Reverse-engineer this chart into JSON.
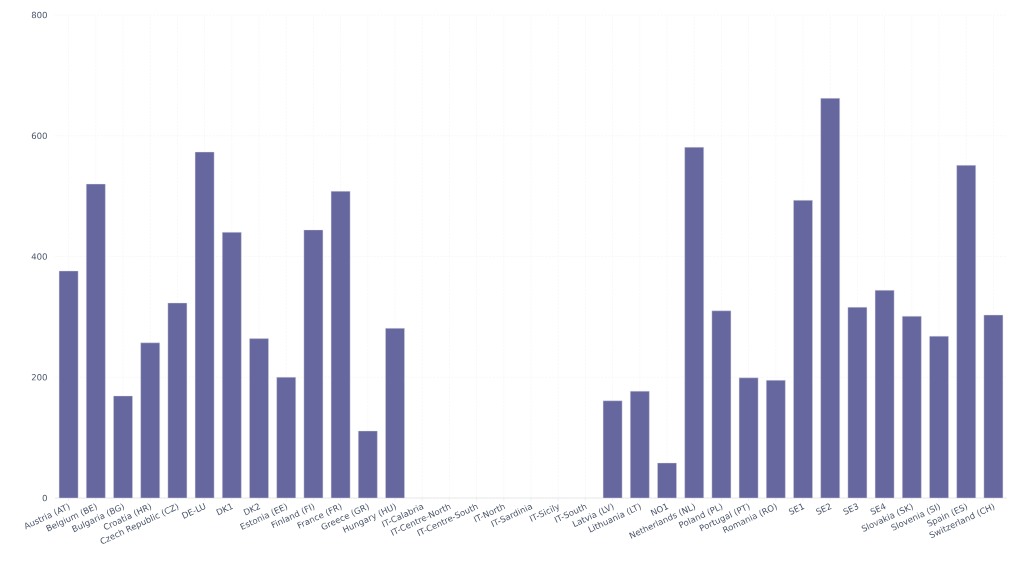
{
  "chart_data": {
    "type": "bar",
    "categories": [
      "Austria (AT)",
      "Belgium (BE)",
      "Bulgaria (BG)",
      "Croatia (HR)",
      "Czech Republic (CZ)",
      "DE-LU",
      "DK1",
      "DK2",
      "Estonia (EE)",
      "Finland (FI)",
      "France (FR)",
      "Greece (GR)",
      "Hungary (HU)",
      "IT-Calabria",
      "IT-Centre-North",
      "IT-Centre-South",
      "IT-North",
      "IT-Sardinia",
      "IT-Sicily",
      "IT-South",
      "Latvia (LV)",
      "Lithuania (LT)",
      "NO1",
      "Netherlands (NL)",
      "Poland (PL)",
      "Portugal (PT)",
      "Romania (RO)",
      "SE1",
      "SE2",
      "SE3",
      "SE4",
      "Slovakia (SK)",
      "Slovenia (SI)",
      "Spain (ES)",
      "Switzerland (CH)"
    ],
    "values": [
      376,
      520,
      169,
      257,
      323,
      573,
      440,
      264,
      200,
      444,
      508,
      111,
      281,
      null,
      null,
      null,
      null,
      null,
      null,
      null,
      161,
      177,
      58,
      581,
      310,
      199,
      195,
      493,
      662,
      316,
      344,
      301,
      268,
      551,
      303
    ],
    "color": "#65679e",
    "ylim": [
      0,
      800
    ],
    "yticks": [
      0,
      200,
      400,
      600,
      800
    ],
    "grid": true
  }
}
